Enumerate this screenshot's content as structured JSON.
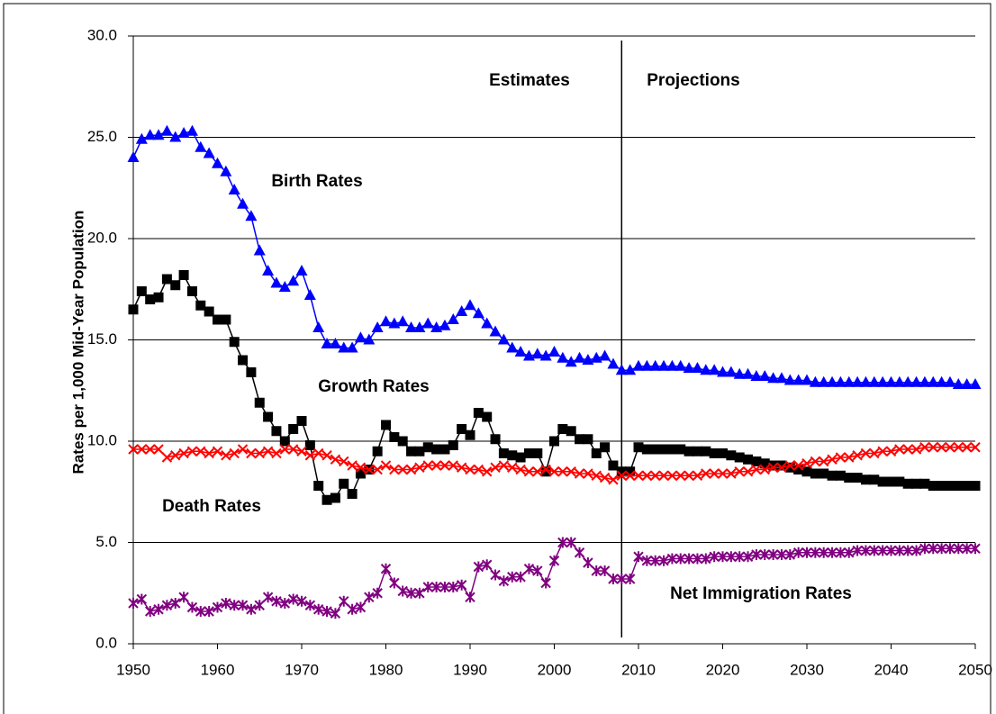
{
  "chart_data": {
    "type": "line",
    "y_label": "Rates per 1,000 Mid-Year Population",
    "annotations": [
      "Estimates",
      "Projections"
    ],
    "vline": 2008,
    "grid": true,
    "xlim": [
      1950,
      2050
    ],
    "xticks": [
      1950,
      1960,
      1970,
      1980,
      1990,
      2000,
      2010,
      2020,
      2030,
      2040,
      2050
    ],
    "ylim": [
      0,
      30
    ],
    "yticks": [
      {
        "value": 0,
        "label": "0.0"
      },
      {
        "value": 5,
        "label": "5.0"
      },
      {
        "value": 10,
        "label": "10.0"
      },
      {
        "value": 15,
        "label": "15.0"
      },
      {
        "value": 20,
        "label": "20.0"
      },
      {
        "value": 25,
        "label": "25.0"
      },
      {
        "value": 30,
        "label": "30.0"
      }
    ],
    "x": [
      1950,
      1951,
      1952,
      1953,
      1954,
      1955,
      1956,
      1957,
      1958,
      1959,
      1960,
      1961,
      1962,
      1963,
      1964,
      1965,
      1966,
      1967,
      1968,
      1969,
      1970,
      1971,
      1972,
      1973,
      1974,
      1975,
      1976,
      1977,
      1978,
      1979,
      1980,
      1981,
      1982,
      1983,
      1984,
      1985,
      1986,
      1987,
      1988,
      1989,
      1990,
      1991,
      1992,
      1993,
      1994,
      1995,
      1996,
      1997,
      1998,
      1999,
      2000,
      2001,
      2002,
      2003,
      2004,
      2005,
      2006,
      2007,
      2008,
      2009,
      2010,
      2011,
      2012,
      2013,
      2014,
      2015,
      2016,
      2017,
      2018,
      2019,
      2020,
      2021,
      2022,
      2023,
      2024,
      2025,
      2026,
      2027,
      2028,
      2029,
      2030,
      2031,
      2032,
      2033,
      2034,
      2035,
      2036,
      2037,
      2038,
      2039,
      2040,
      2041,
      2042,
      2043,
      2044,
      2045,
      2046,
      2047,
      2048,
      2049,
      2050
    ],
    "series": [
      {
        "name": "Birth Rates",
        "color": "#0000ff",
        "marker": "triangle",
        "values": [
          24.0,
          24.9,
          25.1,
          25.1,
          25.3,
          25.0,
          25.2,
          25.3,
          24.5,
          24.2,
          23.7,
          23.3,
          22.4,
          21.7,
          21.1,
          19.4,
          18.4,
          17.8,
          17.6,
          17.9,
          18.4,
          17.2,
          15.6,
          14.8,
          14.8,
          14.6,
          14.6,
          15.1,
          15.0,
          15.6,
          15.9,
          15.8,
          15.9,
          15.6,
          15.6,
          15.8,
          15.6,
          15.7,
          16.0,
          16.4,
          16.7,
          16.3,
          15.8,
          15.4,
          15.0,
          14.6,
          14.4,
          14.2,
          14.3,
          14.2,
          14.4,
          14.1,
          13.9,
          14.1,
          14.0,
          14.1,
          14.2,
          13.8,
          13.5,
          13.5,
          13.7,
          13.7,
          13.7,
          13.7,
          13.7,
          13.7,
          13.6,
          13.6,
          13.5,
          13.5,
          13.4,
          13.4,
          13.3,
          13.3,
          13.2,
          13.2,
          13.1,
          13.1,
          13.0,
          13.0,
          13.0,
          12.9,
          12.9,
          12.9,
          12.9,
          12.9,
          12.9,
          12.9,
          12.9,
          12.9,
          12.9,
          12.9,
          12.9,
          12.9,
          12.9,
          12.9,
          12.9,
          12.9,
          12.8,
          12.8,
          12.8
        ]
      },
      {
        "name": "Growth Rates",
        "color": "#000000",
        "marker": "square",
        "values": [
          16.5,
          17.4,
          17.0,
          17.1,
          18.0,
          17.7,
          18.2,
          17.4,
          16.7,
          16.4,
          16.0,
          16.0,
          14.9,
          14.0,
          13.4,
          11.9,
          11.2,
          10.5,
          10.0,
          10.6,
          11.0,
          9.8,
          7.8,
          7.1,
          7.2,
          7.9,
          7.4,
          8.4,
          8.6,
          9.5,
          10.8,
          10.2,
          10.0,
          9.5,
          9.5,
          9.7,
          9.6,
          9.6,
          9.8,
          10.6,
          10.3,
          11.4,
          11.2,
          10.1,
          9.4,
          9.3,
          9.2,
          9.4,
          9.4,
          8.5,
          10.0,
          10.6,
          10.5,
          10.1,
          10.1,
          9.4,
          9.7,
          8.8,
          8.5,
          8.5,
          9.7,
          9.6,
          9.6,
          9.6,
          9.6,
          9.6,
          9.5,
          9.5,
          9.5,
          9.4,
          9.4,
          9.3,
          9.2,
          9.1,
          9.0,
          8.9,
          8.8,
          8.8,
          8.7,
          8.6,
          8.5,
          8.4,
          8.4,
          8.3,
          8.3,
          8.2,
          8.2,
          8.1,
          8.1,
          8.0,
          8.0,
          8.0,
          7.9,
          7.9,
          7.9,
          7.8,
          7.8,
          7.8,
          7.8,
          7.8,
          7.8
        ]
      },
      {
        "name": "Death Rates",
        "color": "#ff0000",
        "marker": "x",
        "values": [
          9.6,
          9.6,
          9.6,
          9.6,
          9.2,
          9.3,
          9.4,
          9.5,
          9.5,
          9.4,
          9.5,
          9.3,
          9.4,
          9.6,
          9.4,
          9.4,
          9.5,
          9.4,
          9.6,
          9.6,
          9.5,
          9.3,
          9.4,
          9.3,
          9.1,
          9.0,
          8.8,
          8.7,
          8.6,
          8.6,
          8.8,
          8.6,
          8.6,
          8.6,
          8.7,
          8.8,
          8.8,
          8.8,
          8.8,
          8.7,
          8.6,
          8.6,
          8.5,
          8.7,
          8.8,
          8.7,
          8.6,
          8.5,
          8.5,
          8.6,
          8.5,
          8.5,
          8.5,
          8.4,
          8.4,
          8.3,
          8.2,
          8.1,
          8.3,
          8.3,
          8.3,
          8.3,
          8.3,
          8.3,
          8.3,
          8.3,
          8.3,
          8.3,
          8.4,
          8.4,
          8.4,
          8.4,
          8.5,
          8.5,
          8.6,
          8.6,
          8.7,
          8.7,
          8.8,
          8.8,
          8.9,
          9.0,
          9.0,
          9.1,
          9.2,
          9.2,
          9.3,
          9.4,
          9.4,
          9.5,
          9.5,
          9.6,
          9.6,
          9.6,
          9.7,
          9.7,
          9.7,
          9.7,
          9.7,
          9.7,
          9.7
        ]
      },
      {
        "name": "Net Immigration Rates",
        "color": "#800080",
        "marker": "star",
        "values": [
          2.0,
          2.2,
          1.6,
          1.7,
          1.9,
          2.0,
          2.3,
          1.8,
          1.6,
          1.6,
          1.8,
          2.0,
          1.9,
          1.9,
          1.7,
          1.9,
          2.3,
          2.1,
          2.0,
          2.2,
          2.1,
          1.9,
          1.7,
          1.6,
          1.5,
          2.1,
          1.7,
          1.8,
          2.3,
          2.5,
          3.7,
          3.0,
          2.6,
          2.5,
          2.5,
          2.8,
          2.8,
          2.8,
          2.8,
          2.9,
          2.3,
          3.8,
          3.9,
          3.4,
          3.1,
          3.3,
          3.3,
          3.7,
          3.6,
          3.0,
          4.1,
          5.0,
          5.0,
          4.5,
          4.0,
          3.6,
          3.6,
          3.2,
          3.2,
          3.2,
          4.3,
          4.1,
          4.1,
          4.1,
          4.2,
          4.2,
          4.2,
          4.2,
          4.2,
          4.3,
          4.3,
          4.3,
          4.3,
          4.3,
          4.4,
          4.4,
          4.4,
          4.4,
          4.4,
          4.5,
          4.5,
          4.5,
          4.5,
          4.5,
          4.5,
          4.5,
          4.6,
          4.6,
          4.6,
          4.6,
          4.6,
          4.6,
          4.6,
          4.6,
          4.7,
          4.7,
          4.7,
          4.7,
          4.7,
          4.7,
          4.7
        ]
      }
    ]
  }
}
